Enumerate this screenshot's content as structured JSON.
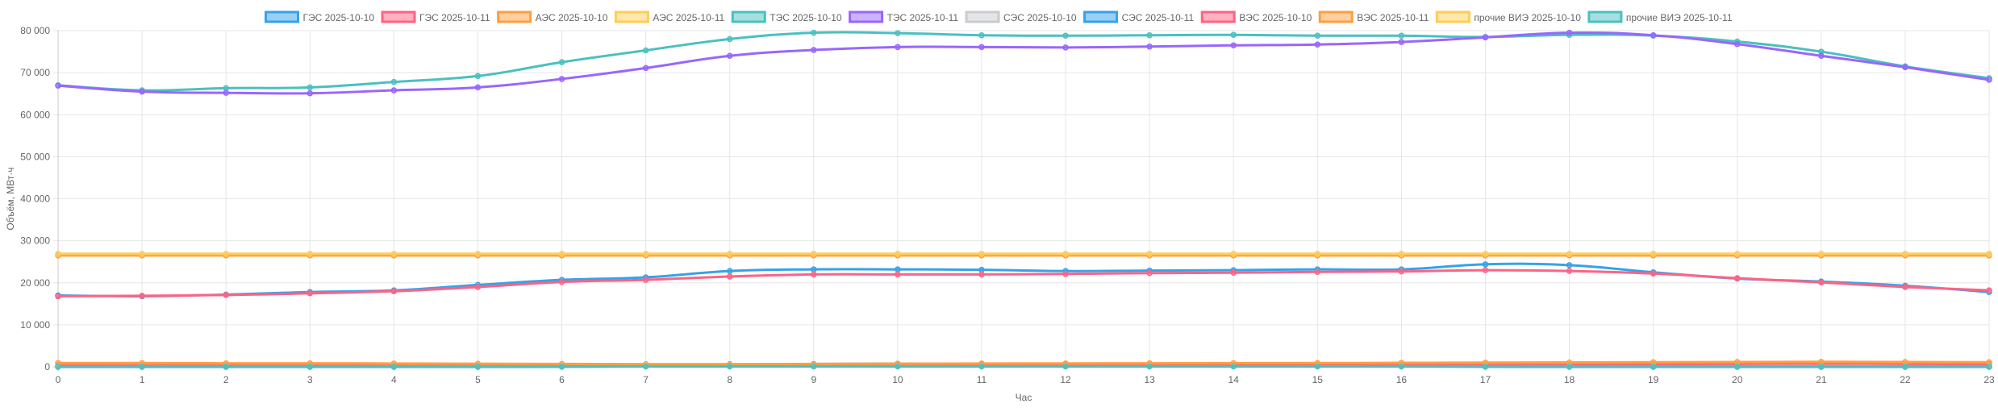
{
  "chart_data": {
    "type": "line",
    "xlabel": "Час",
    "ylabel": "Объём, МВт·ч",
    "xlim": [
      0,
      23
    ],
    "ylim": [
      0,
      80000
    ],
    "y_ticks": [
      "0",
      "10 000",
      "20 000",
      "30 000",
      "40 000",
      "50 000",
      "60 000",
      "70 000",
      "80 000"
    ],
    "x_ticks": [
      "0",
      "1",
      "2",
      "3",
      "4",
      "5",
      "6",
      "7",
      "8",
      "9",
      "10",
      "11",
      "12",
      "13",
      "14",
      "15",
      "16",
      "17",
      "18",
      "19",
      "20",
      "21",
      "22",
      "23"
    ],
    "grid": true,
    "legend_position": "top",
    "x": [
      0,
      1,
      2,
      3,
      4,
      5,
      6,
      7,
      8,
      9,
      10,
      11,
      12,
      13,
      14,
      15,
      16,
      17,
      18,
      19,
      20,
      21,
      22,
      23
    ],
    "series": [
      {
        "name": "ГЭС 2025-10-10",
        "color": "#36a2eb",
        "values": [
          17000,
          16800,
          17200,
          17800,
          18200,
          19500,
          20700,
          21300,
          22800,
          23200,
          23200,
          23100,
          22800,
          22900,
          23000,
          23200,
          23200,
          24400,
          24200,
          22500,
          21000,
          20300,
          19300,
          17800
        ]
      },
      {
        "name": "ГЭС 2025-10-11",
        "color": "#ff6384",
        "values": [
          16800,
          16900,
          17100,
          17500,
          18000,
          19000,
          20200,
          20700,
          21500,
          22000,
          22000,
          22000,
          22100,
          22300,
          22400,
          22600,
          22700,
          23000,
          22800,
          22200,
          21100,
          20100,
          19000,
          18200
        ]
      },
      {
        "name": "АЭС 2025-10-10",
        "color": "#ff9f40",
        "values": [
          26500,
          26500,
          26500,
          26500,
          26500,
          26500,
          26500,
          26500,
          26500,
          26500,
          26500,
          26500,
          26500,
          26500,
          26500,
          26500,
          26500,
          26500,
          26500,
          26500,
          26500,
          26500,
          26500,
          26500
        ]
      },
      {
        "name": "АЭС 2025-10-11",
        "color": "#ffcd56",
        "values": [
          26900,
          26900,
          26900,
          26900,
          26900,
          26900,
          26900,
          26900,
          26900,
          26900,
          26900,
          26900,
          26900,
          26900,
          26900,
          26900,
          26900,
          26900,
          26900,
          26900,
          26900,
          26900,
          26900,
          26900
        ]
      },
      {
        "name": "ТЭС 2025-10-10",
        "color": "#4bc0c0",
        "values": [
          67000,
          65800,
          66300,
          66500,
          67800,
          69200,
          72500,
          75300,
          78000,
          79500,
          79400,
          78900,
          78800,
          78900,
          79000,
          78800,
          78800,
          78500,
          79000,
          78800,
          77400,
          75000,
          71500,
          68700
        ]
      },
      {
        "name": "ТЭС 2025-10-11",
        "color": "#9966ff",
        "values": [
          66900,
          65500,
          65200,
          65100,
          65800,
          66500,
          68500,
          71100,
          74000,
          75400,
          76100,
          76100,
          76000,
          76200,
          76500,
          76700,
          77300,
          78400,
          79500,
          78900,
          76800,
          74000,
          71300,
          68300
        ]
      },
      {
        "name": "СЭС 2025-10-10",
        "color": "#c9cbcf",
        "values": [
          0,
          0,
          0,
          0,
          0,
          0,
          50,
          150,
          400,
          700,
          800,
          700,
          650,
          500,
          400,
          300,
          150,
          50,
          0,
          0,
          0,
          0,
          0,
          0
        ]
      },
      {
        "name": "СЭС 2025-10-11",
        "color": "#36a2eb",
        "values": [
          0,
          0,
          0,
          0,
          0,
          0,
          30,
          100,
          300,
          500,
          600,
          550,
          500,
          400,
          300,
          200,
          100,
          30,
          0,
          0,
          0,
          0,
          0,
          0
        ]
      },
      {
        "name": "ВЭС 2025-10-10",
        "color": "#ff6384",
        "values": [
          400,
          350,
          320,
          300,
          280,
          250,
          230,
          220,
          250,
          300,
          350,
          380,
          400,
          420,
          450,
          480,
          520,
          560,
          600,
          650,
          700,
          750,
          700,
          650
        ]
      },
      {
        "name": "ВЭС 2025-10-11",
        "color": "#ff9f40",
        "values": [
          900,
          900,
          850,
          850,
          800,
          750,
          700,
          650,
          650,
          700,
          750,
          800,
          820,
          850,
          880,
          900,
          950,
          1000,
          1050,
          1100,
          1150,
          1200,
          1150,
          1100
        ]
      },
      {
        "name": "прочие ВИЭ 2025-10-10",
        "color": "#ffcd56",
        "values": [
          120,
          120,
          120,
          120,
          120,
          120,
          120,
          120,
          120,
          120,
          120,
          120,
          120,
          120,
          120,
          120,
          120,
          120,
          120,
          120,
          120,
          120,
          120,
          120
        ]
      },
      {
        "name": "прочие ВИЭ 2025-10-11",
        "color": "#4bc0c0",
        "values": [
          100,
          100,
          100,
          100,
          100,
          100,
          100,
          100,
          100,
          100,
          100,
          100,
          100,
          100,
          100,
          100,
          100,
          100,
          100,
          100,
          100,
          100,
          100,
          100
        ]
      }
    ]
  }
}
